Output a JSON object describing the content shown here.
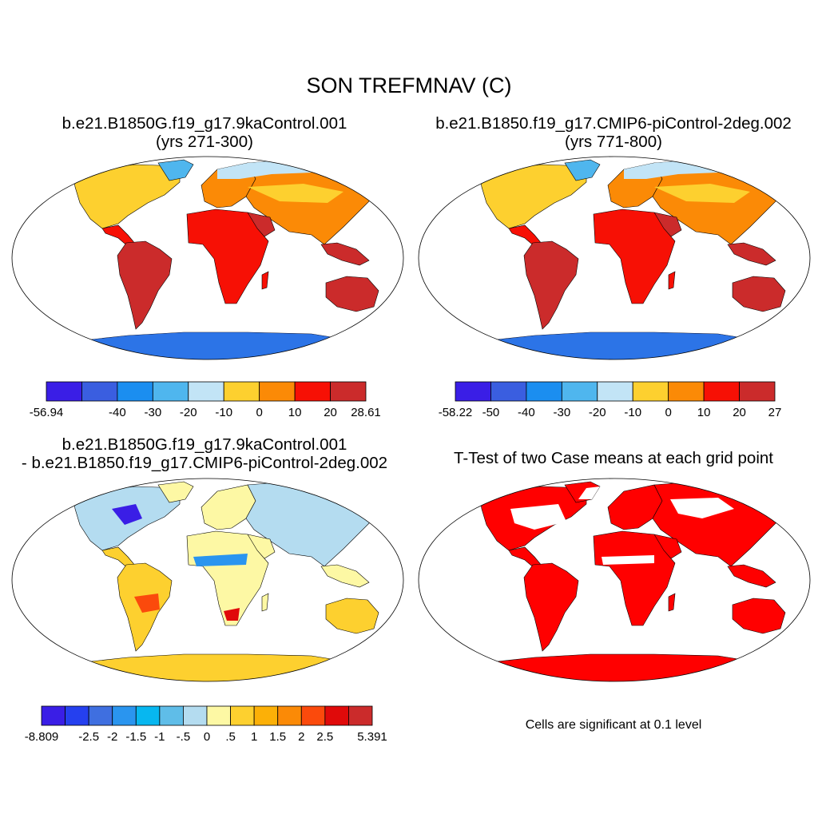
{
  "title": "SON TREFMNAV (C)",
  "panels": [
    {
      "id": "p1",
      "title_line1": "b.e21.B1850G.f19_g17.9kaControl.001",
      "title_line2": "(yrs 271-300)",
      "colorbar": {
        "colors": [
          "#3a1ee6",
          "#3a5ee0",
          "#1b8ef0",
          "#4fb6ee",
          "#c2e4f6",
          "#fdd02f",
          "#fb8a06",
          "#f71005",
          "#cb2b2b"
        ],
        "labels": [
          "-56.94",
          "",
          "-40",
          "-30",
          "-20",
          "-10",
          "0",
          "10",
          "20",
          "28.61"
        ]
      }
    },
    {
      "id": "p2",
      "title_line1": "b.e21.B1850.f19_g17.CMIP6-piControl-2deg.002",
      "title_line2": "(yrs 771-800)",
      "colorbar": {
        "colors": [
          "#3a1ee6",
          "#3a5ee0",
          "#1b8ef0",
          "#4fb6ee",
          "#c2e4f6",
          "#fdd02f",
          "#fb8a06",
          "#f71005",
          "#cb2b2b"
        ],
        "labels": [
          "-58.22",
          "-50",
          "-40",
          "-30",
          "-20",
          "-10",
          "0",
          "10",
          "20",
          "27"
        ]
      }
    },
    {
      "id": "p3",
      "title_line1": "b.e21.B1850G.f19_g17.9kaControl.001",
      "title_line2": "- b.e21.B1850.f19_g17.CMIP6-piControl-2deg.002",
      "colorbar": {
        "colors": [
          "#3a1ee6",
          "#2540ef",
          "#3f6fe0",
          "#2a95ef",
          "#07b7f0",
          "#5fbde8",
          "#b4dcf0",
          "#fdf8a4",
          "#fdd02f",
          "#fcb007",
          "#fb8a06",
          "#fb4a0c",
          "#e00a0a",
          "#cb2b2b"
        ],
        "labels": [
          "-8.809",
          "",
          "-2.5",
          "-2",
          "-1.5",
          "-1",
          "-.5",
          "0",
          ".5",
          "1",
          "1.5",
          "2",
          "2.5",
          "",
          "5.391"
        ]
      }
    },
    {
      "id": "p4",
      "title_line1": "T-Test of two Case means at each grid point",
      "note": "Cells are significant at 0.1 level",
      "sig_color": "#ff0000"
    }
  ]
}
